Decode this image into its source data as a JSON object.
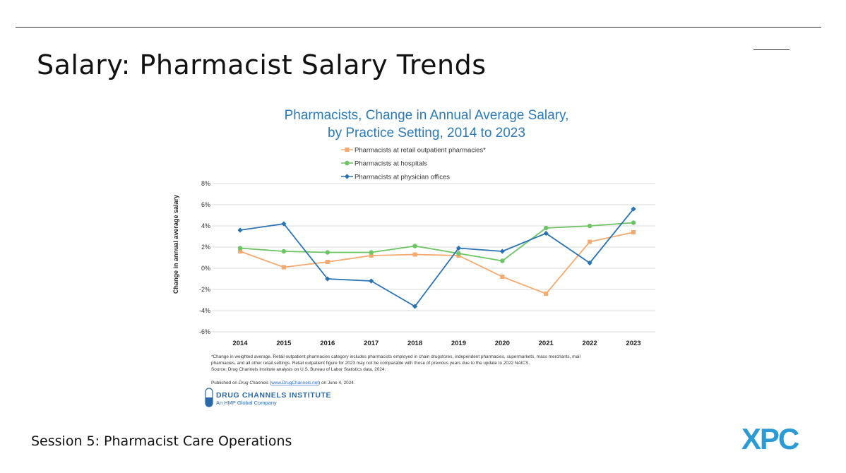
{
  "slide": {
    "title": "Salary: Pharmacist Salary Trends",
    "footer": "Session 5: Pharmacist Care Operations",
    "logo_text": "XPC",
    "brand_color": "#2a9bd6"
  },
  "chart_data": {
    "type": "line",
    "title_line1": "Pharmacists, Change in Annual Average Salary,",
    "title_line2": "by Practice Setting, 2014 to 2023",
    "xlabel": "",
    "ylabel": "Change in annual average salary",
    "categories": [
      "2014",
      "2015",
      "2016",
      "2017",
      "2018",
      "2019",
      "2020",
      "2021",
      "2022",
      "2023"
    ],
    "ylim": [
      -6,
      8
    ],
    "yticks": [
      8,
      6,
      4,
      2,
      0,
      -2,
      -4,
      -6
    ],
    "ytick_labels": [
      "8%",
      "6%",
      "4%",
      "2%",
      "0%",
      "-2%",
      "-4%",
      "-6%"
    ],
    "grid": true,
    "legend_position": "top",
    "series": [
      {
        "name": "Pharmacists at retail outpatient pharmacies*",
        "color": "#f4a96f",
        "marker": "square",
        "values": [
          1.6,
          0.1,
          0.6,
          1.2,
          1.3,
          1.2,
          -0.8,
          -2.4,
          2.5,
          3.4
        ]
      },
      {
        "name": "Pharmacists at hospitals",
        "color": "#6cc463",
        "marker": "circle",
        "values": [
          1.9,
          1.6,
          1.5,
          1.5,
          2.1,
          1.4,
          0.7,
          3.8,
          4.0,
          4.3
        ]
      },
      {
        "name": "Pharmacists at physician offices",
        "color": "#2a73b3",
        "marker": "diamond",
        "values": [
          3.6,
          4.2,
          -1.0,
          -1.2,
          -3.6,
          1.9,
          1.6,
          3.3,
          0.5,
          5.6
        ]
      }
    ],
    "footnote_lines": [
      "*Change in weighted average. Retail outpatient pharmacies category includes pharmacists employed in chain drugstores, independent pharmacies, supermarkets, mass merchants, mail",
      "pharmacies, and all other retail settings. Retail outpatient figure for 2023 may not be comparable with those of previous years due to the update to 2022 NAICS.",
      "Source: Drug Channels Institute analysis on U.S. Bureau of Labor Statistics data, 2024."
    ],
    "published_prefix": "Published on ",
    "published_source": "Drug Channels",
    "published_link": "www.DrugChannels.net",
    "published_suffix": " on June 4, 2024.",
    "source_logo_name": "DRUG CHANNELS INSTITUTE",
    "source_logo_sub": "An HMP Global Company"
  }
}
